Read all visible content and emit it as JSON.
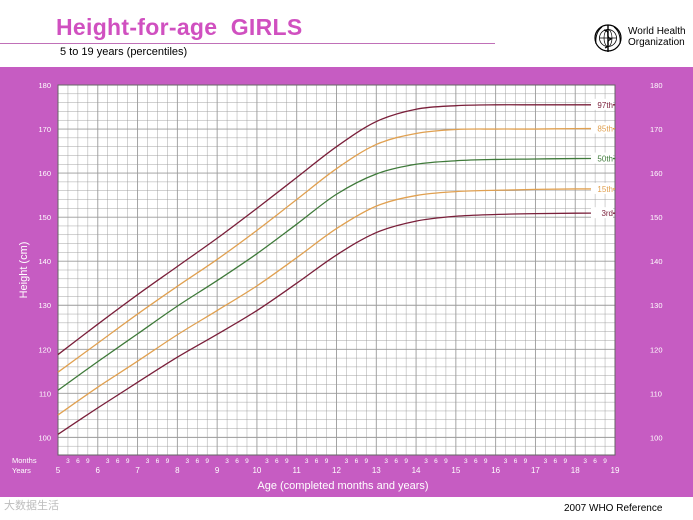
{
  "header": {
    "title": "Height-for-age  GIRLS",
    "subtitle": "5 to 19 years (percentiles)",
    "logo_text_line1": "World Health",
    "logo_text_line2": "Organization",
    "logo_icon": "who-emblem-icon"
  },
  "footer": {
    "reference": "2007 WHO Reference",
    "watermark": "大数据生活"
  },
  "colors": {
    "frame": "#c65cc2",
    "plot_bg": "#ffffff",
    "grid": "#9a9a9a",
    "p97": "#7a1f3a",
    "p85": "#e0a050",
    "p50": "#3f7a3a",
    "p15": "#e0a050",
    "p3": "#7a1f3a"
  },
  "chart_data": {
    "type": "line",
    "xlabel": "Age (completed months and years)",
    "ylabel": "Height (cm)",
    "xlim": [
      5,
      19
    ],
    "ylim": [
      96,
      180
    ],
    "yticks": [
      100,
      110,
      120,
      130,
      140,
      150,
      160,
      170,
      180
    ],
    "xticks_years": [
      5,
      6,
      7,
      8,
      9,
      10,
      11,
      12,
      13,
      14,
      15,
      16,
      17,
      18,
      19
    ],
    "month_ticks": [
      "3",
      "6",
      "9"
    ],
    "row_label_months": "Months",
    "row_label_years": "Years",
    "grid": true,
    "x": [
      5,
      6,
      7,
      8,
      9,
      10,
      11,
      12,
      13,
      14,
      15,
      16,
      17,
      18,
      19
    ],
    "series": [
      {
        "name": "97th",
        "values": [
          118.8,
          125.7,
          132.4,
          138.8,
          145.2,
          152.0,
          159.0,
          166.0,
          171.7,
          174.5,
          175.3,
          175.5,
          175.5,
          175.5,
          175.5
        ]
      },
      {
        "name": "85th",
        "values": [
          114.8,
          121.4,
          128.0,
          134.3,
          140.4,
          147.0,
          154.0,
          161.0,
          166.5,
          169.0,
          169.9,
          170.0,
          170.0,
          170.1,
          170.1
        ]
      },
      {
        "name": "50th",
        "values": [
          110.7,
          117.2,
          123.5,
          129.8,
          135.6,
          141.7,
          148.4,
          155.2,
          159.8,
          162.0,
          162.8,
          163.1,
          163.2,
          163.3,
          163.3
        ]
      },
      {
        "name": "15th",
        "values": [
          105.1,
          111.4,
          117.3,
          123.3,
          128.8,
          134.4,
          140.8,
          147.4,
          152.5,
          154.9,
          155.8,
          156.1,
          156.3,
          156.4,
          156.4
        ]
      },
      {
        "name": "3rd",
        "values": [
          100.7,
          106.7,
          112.5,
          118.2,
          123.4,
          128.8,
          135.0,
          141.4,
          146.5,
          149.1,
          150.2,
          150.6,
          150.8,
          150.9,
          150.9
        ]
      }
    ]
  }
}
